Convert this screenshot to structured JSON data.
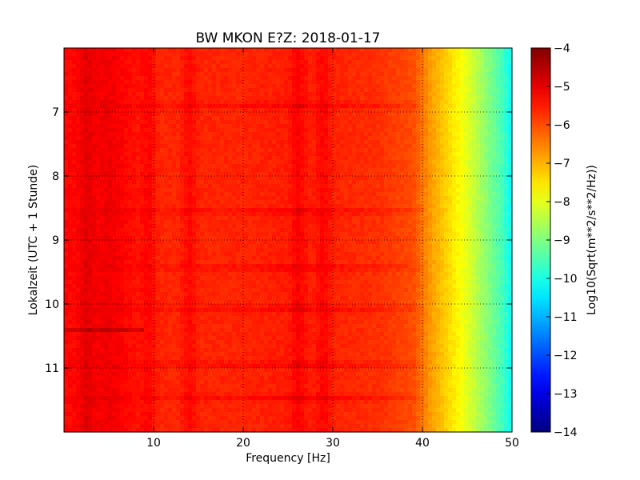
{
  "chart_data": {
    "type": "heatmap",
    "title": "BW MKON E?Z: 2018-01-17",
    "xlabel": "Frequency [Hz]",
    "ylabel": "Lokalzeit (UTC + 1 Stunde)",
    "colorbar_label": "Log10(Sqrt(m**2/s**2/Hz))",
    "colormap": "jet",
    "xlim": [
      0,
      50
    ],
    "ylim": [
      12,
      6
    ],
    "y_reversed": true,
    "x_ticks": [
      10,
      20,
      30,
      40,
      50
    ],
    "x_tick_labels": [
      "10",
      "20",
      "30",
      "40",
      "50"
    ],
    "y_ticks": [
      7,
      8,
      9,
      10,
      11
    ],
    "y_tick_labels": [
      "7",
      "8",
      "9",
      "10",
      "11"
    ],
    "colorbar_range": [
      -14,
      -4
    ],
    "colorbar_ticks": [
      -4,
      -5,
      -6,
      -7,
      -8,
      -9,
      -10,
      -11,
      -12,
      -13,
      -14
    ],
    "colorbar_tick_labels": [
      "−4",
      "−5",
      "−6",
      "−7",
      "−8",
      "−9",
      "−10",
      "−11",
      "−12",
      "−13",
      "−14"
    ],
    "grid": true,
    "grid_style": "dotted",
    "baseline_profile": {
      "frequency": [
        0,
        2,
        5,
        10,
        20,
        26,
        35,
        39,
        41,
        43,
        45,
        47,
        49,
        50
      ],
      "level": [
        -5.3,
        -5.3,
        -5.1,
        -5.6,
        -5.6,
        -5.5,
        -5.7,
        -6.0,
        -6.8,
        -7.4,
        -8.0,
        -8.8,
        -9.6,
        -10.2
      ]
    },
    "strong_frequency_bands": [
      2.5,
      9.5,
      14,
      26.2,
      29
    ],
    "strong_time_bands": [
      6.9,
      8.55,
      9.43,
      10.08,
      10.95,
      11.47
    ]
  }
}
